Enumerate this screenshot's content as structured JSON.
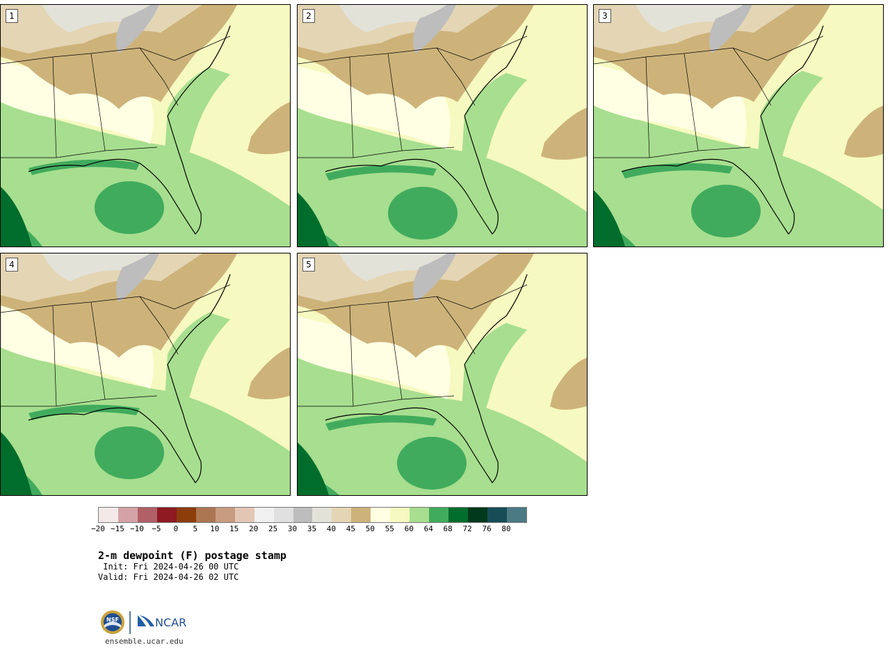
{
  "panels": [
    {
      "label": "1"
    },
    {
      "label": "2"
    },
    {
      "label": "3"
    },
    {
      "label": "4"
    },
    {
      "label": "5"
    }
  ],
  "colorbar": {
    "colors": [
      "#f4e9e9",
      "#d4a2a6",
      "#b16068",
      "#8e1a22",
      "#8c3d0a",
      "#ad7653",
      "#c89c81",
      "#e4c6b5",
      "#f0f0f0",
      "#e0e0e0",
      "#bdbdbd",
      "#e2e2d8",
      "#e4d5b4",
      "#cdb37a",
      "#ffffe3",
      "#f6f9c0",
      "#a7de8f",
      "#41ab5d",
      "#006d2c",
      "#00391b",
      "#174d57",
      "#4b7a84"
    ],
    "ticks": [
      "−20",
      "−15",
      "−10",
      "−5",
      "0",
      "5",
      "10",
      "15",
      "20",
      "25",
      "30",
      "35",
      "40",
      "45",
      "50",
      "55",
      "60",
      "64",
      "68",
      "72",
      "76",
      "80"
    ]
  },
  "title": "2-m dewpoint (F) postage stamp",
  "init": " Init: Fri 2024-04-26 00 UTC",
  "valid": "Valid: Fri 2024-04-26 02 UTC",
  "logos": {
    "nsf": "NSF",
    "ncar": "NCAR"
  },
  "site": "ensemble.ucar.edu"
}
